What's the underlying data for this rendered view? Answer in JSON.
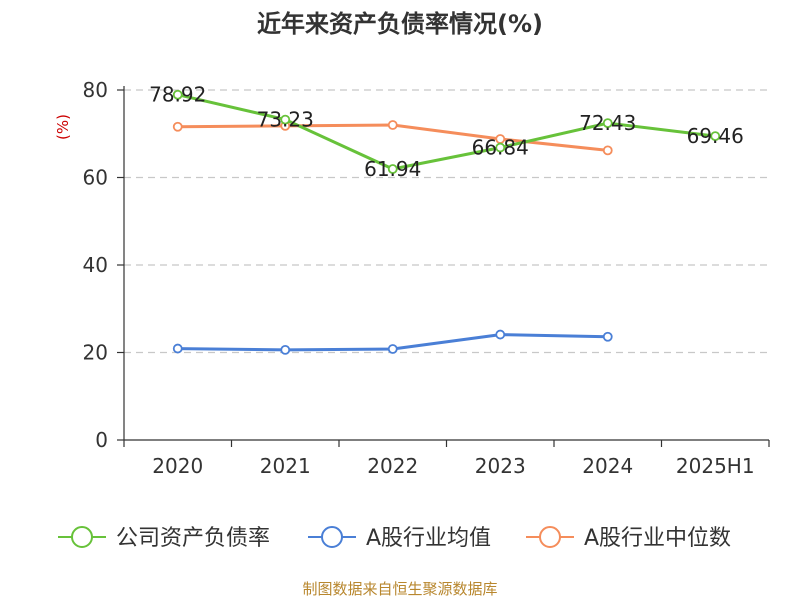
{
  "chart_data": {
    "type": "line",
    "title": "近年来资产负债率情况(%)",
    "ylabel": "(%)",
    "xlabel": "",
    "categories": [
      "2020",
      "2021",
      "2022",
      "2023",
      "2024",
      "2025H1"
    ],
    "ylim": [
      0,
      80
    ],
    "yticks": [
      0,
      20,
      40,
      60,
      80
    ],
    "grid": true,
    "legend_position": "bottom",
    "series": [
      {
        "name": "公司资产负债率",
        "color": "#67c23a",
        "values": [
          78.92,
          73.23,
          61.94,
          66.84,
          72.43,
          69.46
        ],
        "labels": [
          "78.92",
          "73.23",
          "61.94",
          "66.84",
          "72.43",
          "69.46"
        ]
      },
      {
        "name": "A股行业均值",
        "color": "#4a7fd6",
        "values": [
          20.9,
          20.6,
          20.8,
          24.1,
          23.6,
          null
        ]
      },
      {
        "name": "A股行业中位数",
        "color": "#f58d5b",
        "values": [
          71.6,
          71.8,
          72.0,
          68.8,
          66.2,
          null
        ]
      }
    ]
  },
  "source": "制图数据来自恒生聚源数据库"
}
